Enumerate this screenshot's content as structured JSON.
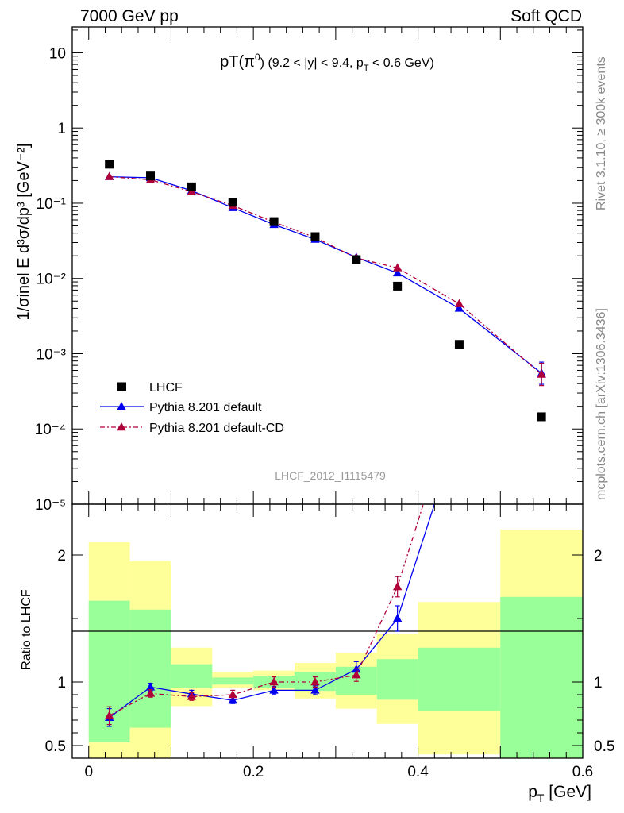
{
  "header": {
    "left": "7000 GeV pp",
    "right": "Soft QCD"
  },
  "side_labels": {
    "rivet": "Rivet 3.1.10, ≥ 300k events",
    "mcplots": "mcplots.cern.ch [arXiv:1306.3436]"
  },
  "chart_data": [
    {
      "type": "scatter",
      "panel": "main",
      "title_main": "pT(π",
      "title_sup": "0",
      "title_rest": ") (9.2 < |y| < 9.4, p",
      "title_sub": "T",
      "title_end": " < 0.6 GeV)",
      "ylabel": "1/σinel E d³σ/dp³ [GeV⁻²]",
      "yscale": "log",
      "ylim": [
        1e-05,
        22
      ],
      "xlim": [
        -0.02,
        0.6
      ],
      "ytick_labels": [
        "10",
        "1",
        "10⁻¹",
        "10⁻²",
        "10⁻³",
        "10⁻⁴",
        "10⁻⁵"
      ],
      "watermark": "LHCF_2012_I1115479",
      "legend_position": "bottom-left",
      "series": [
        {
          "name": "LHCF",
          "style": "marker",
          "color": "#000000",
          "x": [
            0.025,
            0.075,
            0.125,
            0.175,
            0.225,
            0.275,
            0.325,
            0.375,
            0.45,
            0.55
          ],
          "y": [
            0.33,
            0.23,
            0.165,
            0.103,
            0.057,
            0.036,
            0.0178,
            0.0079,
            0.00133,
            0.000145
          ]
        },
        {
          "name": "Pythia 8.201 default",
          "style": "solid",
          "color": "#0000ee",
          "x": [
            0.025,
            0.075,
            0.125,
            0.175,
            0.225,
            0.275,
            0.325,
            0.375,
            0.45,
            0.55
          ],
          "y": [
            0.225,
            0.218,
            0.147,
            0.087,
            0.052,
            0.033,
            0.0191,
            0.0118,
            0.004,
            0.00055
          ]
        },
        {
          "name": "Pythia 8.201 default-CD",
          "style": "dashdot",
          "color": "#b0003a",
          "x": [
            0.025,
            0.075,
            0.125,
            0.175,
            0.225,
            0.275,
            0.325,
            0.375,
            0.45,
            0.55
          ],
          "y": [
            0.225,
            0.205,
            0.142,
            0.093,
            0.056,
            0.035,
            0.0187,
            0.0138,
            0.0046,
            0.00053
          ]
        }
      ]
    },
    {
      "type": "line",
      "panel": "ratio",
      "ylabel": "Ratio to LHCF",
      "xlabel": "p_T [GeV]",
      "xlabel_main": "p",
      "xlabel_sub": "T",
      "xlabel_unit": " [GeV]",
      "xticks": [
        "0",
        "0.2",
        "0.4",
        "0.6"
      ],
      "yticks": [
        "0.5",
        "1",
        "2"
      ],
      "ylim": [
        0.4,
        2.4
      ],
      "xlim": [
        -0.02,
        0.6
      ],
      "bands": [
        {
          "x0": 0.0,
          "x1": 0.05,
          "inner": [
            0.525,
            1.64
          ],
          "outer": [
            0.38,
            2.1
          ]
        },
        {
          "x0": 0.05,
          "x1": 0.1,
          "inner": [
            0.64,
            1.57
          ],
          "outer": [
            0.38,
            1.95
          ]
        },
        {
          "x0": 0.1,
          "x1": 0.15,
          "inner": [
            0.95,
            1.14
          ],
          "outer": [
            0.81,
            1.27
          ]
        },
        {
          "x0": 0.15,
          "x1": 0.2,
          "inner": [
            0.98,
            1.035
          ],
          "outer": [
            0.95,
            1.075
          ]
        },
        {
          "x0": 0.2,
          "x1": 0.25,
          "inner": [
            0.95,
            1.05
          ],
          "outer": [
            0.935,
            1.09
          ]
        },
        {
          "x0": 0.25,
          "x1": 0.3,
          "inner": [
            0.93,
            1.08
          ],
          "outer": [
            0.87,
            1.15
          ]
        },
        {
          "x0": 0.3,
          "x1": 0.35,
          "inner": [
            0.9,
            1.12
          ],
          "outer": [
            0.79,
            1.23
          ]
        },
        {
          "x0": 0.35,
          "x1": 0.4,
          "inner": [
            0.86,
            1.18
          ],
          "outer": [
            0.67,
            1.38
          ]
        },
        {
          "x0": 0.4,
          "x1": 0.5,
          "inner": [
            0.77,
            1.27
          ],
          "outer": [
            0.43,
            1.63
          ]
        },
        {
          "x0": 0.5,
          "x1": 0.6,
          "inner": [
            0.38,
            1.67
          ],
          "outer": [
            0.38,
            2.2
          ]
        }
      ],
      "series": [
        {
          "name": "Pythia 8.201 default",
          "color": "#0000ee",
          "x": [
            0.025,
            0.075,
            0.125,
            0.175,
            0.225,
            0.275,
            0.325,
            0.375,
            0.45
          ],
          "y": [
            0.72,
            0.96,
            0.905,
            0.855,
            0.935,
            0.935,
            1.1,
            1.5,
            3.0
          ],
          "err": [
            0.07,
            0.03,
            0.03,
            0.025,
            0.03,
            0.035,
            0.06,
            0.1,
            0.3
          ]
        },
        {
          "name": "Pythia 8.201 default-CD",
          "color": "#b0003a",
          "x": [
            0.025,
            0.075,
            0.125,
            0.175,
            0.225,
            0.275,
            0.325,
            0.375,
            0.45
          ],
          "y": [
            0.735,
            0.91,
            0.885,
            0.9,
            1.0,
            1.0,
            1.055,
            1.75,
            3.3
          ],
          "err": [
            0.07,
            0.03,
            0.03,
            0.035,
            0.04,
            0.04,
            0.05,
            0.08,
            0.3
          ]
        }
      ]
    }
  ]
}
